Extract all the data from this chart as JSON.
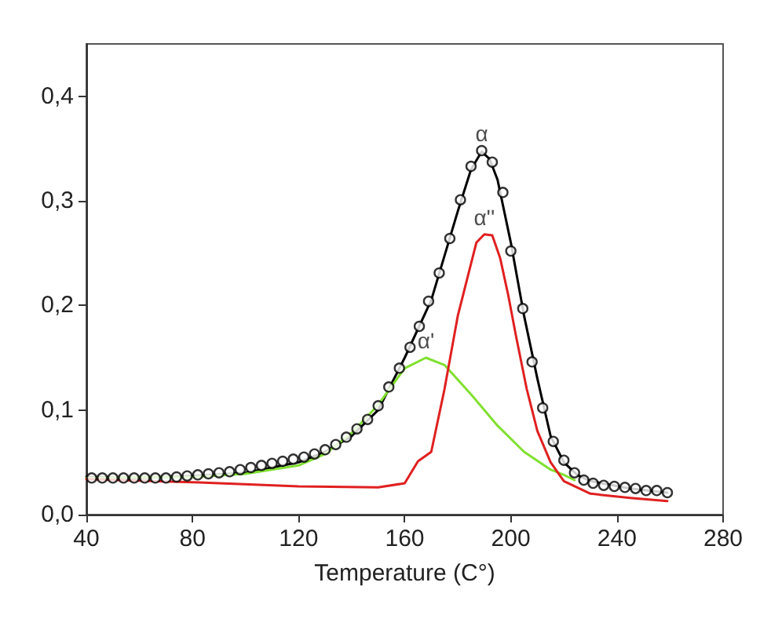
{
  "chart_data": {
    "type": "line",
    "xlabel": "Temperature (C°)",
    "xlim": [
      40,
      280
    ],
    "xticks": [
      40,
      80,
      120,
      160,
      200,
      240,
      280
    ],
    "ylim": [
      0,
      0.45
    ],
    "yticks": [
      {
        "value": 0,
        "label": "0,0"
      },
      {
        "value": 0.1,
        "label": "0,1"
      },
      {
        "value": 0.2,
        "label": "0,2"
      },
      {
        "value": 0.3,
        "label": "0,3"
      },
      {
        "value": 0.4,
        "label": "0,4"
      }
    ],
    "grid": false,
    "series": [
      {
        "color": "#000000",
        "marker": "none",
        "x": [
          40,
          60,
          80,
          100,
          120,
          130,
          140,
          150,
          160,
          170,
          180,
          185,
          189,
          192,
          195,
          200,
          205,
          210,
          215,
          220,
          225,
          230,
          245,
          259
        ],
        "values": [
          0.036,
          0.035,
          0.037,
          0.04,
          0.05,
          0.06,
          0.075,
          0.1,
          0.15,
          0.205,
          0.29,
          0.33,
          0.347,
          0.34,
          0.32,
          0.26,
          0.19,
          0.13,
          0.075,
          0.05,
          0.038,
          0.032,
          0.025,
          0.021
        ]
      },
      {
        "color": "#80e030",
        "marker": "none",
        "x": [
          40,
          80,
          100,
          120,
          130,
          140,
          150,
          160,
          168,
          175,
          185,
          195,
          205,
          215,
          220,
          224
        ],
        "values": [
          0.035,
          0.036,
          0.039,
          0.047,
          0.058,
          0.078,
          0.105,
          0.14,
          0.15,
          0.143,
          0.115,
          0.085,
          0.06,
          0.043,
          0.038,
          0.033
        ]
      },
      {
        "color": "#e02020",
        "marker": "none",
        "x": [
          40,
          80,
          120,
          150,
          160,
          165,
          170,
          175,
          180,
          184,
          187,
          190,
          193,
          196,
          199,
          202,
          206,
          210,
          215,
          220,
          230,
          245,
          259
        ],
        "values": [
          0.034,
          0.031,
          0.027,
          0.026,
          0.03,
          0.051,
          0.06,
          0.12,
          0.19,
          0.23,
          0.26,
          0.268,
          0.267,
          0.245,
          0.21,
          0.17,
          0.12,
          0.08,
          0.05,
          0.032,
          0.02,
          0.016,
          0.013
        ]
      },
      {
        "type": "scatter",
        "color": "#000000",
        "marker": "circle",
        "x": [
          42,
          46,
          50,
          54,
          58,
          62,
          66,
          70,
          74,
          78,
          82,
          86,
          90,
          94,
          98,
          102,
          106,
          110,
          114,
          118,
          122,
          126,
          130,
          134,
          138,
          142,
          146,
          150,
          154,
          158,
          162,
          165.5,
          169,
          173,
          177,
          181,
          185,
          189,
          193,
          197,
          200,
          204.5,
          208,
          212,
          216,
          220,
          224,
          227.5,
          231,
          235,
          239,
          243,
          247,
          251,
          255,
          259
        ],
        "values": [
          0.035,
          0.035,
          0.035,
          0.035,
          0.035,
          0.035,
          0.035,
          0.035,
          0.036,
          0.037,
          0.038,
          0.039,
          0.04,
          0.041,
          0.043,
          0.045,
          0.047,
          0.049,
          0.051,
          0.053,
          0.055,
          0.058,
          0.062,
          0.067,
          0.074,
          0.082,
          0.091,
          0.104,
          0.122,
          0.14,
          0.16,
          0.18,
          0.204,
          0.231,
          0.264,
          0.301,
          0.333,
          0.348,
          0.337,
          0.308,
          0.252,
          0.197,
          0.146,
          0.102,
          0.07,
          0.052,
          0.04,
          0.033,
          0.03,
          0.028,
          0.027,
          0.026,
          0.025,
          0.023,
          0.023,
          0.021
        ]
      }
    ],
    "annotations": [
      {
        "text": "α",
        "x": 189,
        "y": 0.348
      },
      {
        "text": "α''",
        "x": 190,
        "y": 0.268
      },
      {
        "text": "α'",
        "x": 168,
        "y": 0.15
      }
    ]
  }
}
